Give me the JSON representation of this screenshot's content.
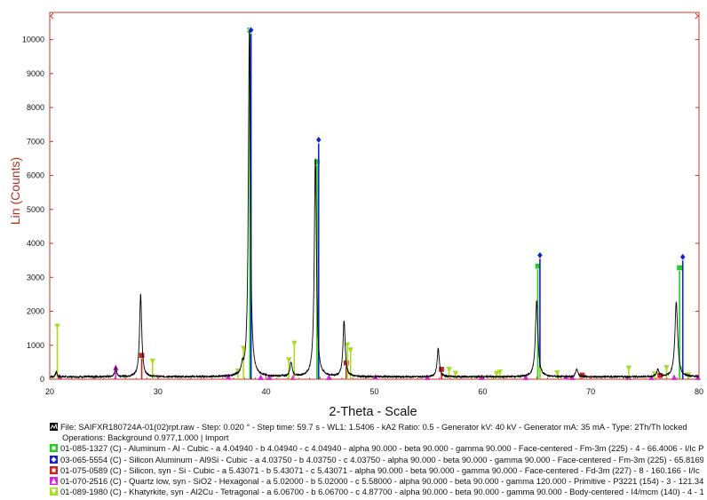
{
  "chart_data": {
    "type": "line",
    "title": "",
    "xlabel": "2-Theta - Scale",
    "ylabel": "Lin (Counts)",
    "xlim": [
      20,
      80
    ],
    "ylim": [
      0,
      10800
    ],
    "xticks": [
      20,
      30,
      40,
      50,
      60,
      70,
      80
    ],
    "yticks": [
      0,
      1000,
      2000,
      3000,
      4000,
      5000,
      6000,
      7000,
      8000,
      9000,
      10000
    ],
    "grid": false,
    "colors": {
      "frame": "#c0392b",
      "pattern": "#000000",
      "aluminum": "#22cc22",
      "silicon_aluminum": "#1122cc",
      "silicon": "#cc2222",
      "quartz": "#dd22dd",
      "khatyrkite": "#aadd22"
    },
    "series": [
      {
        "name": "File: SAIFXR180724A-01(02)rpt.raw",
        "kind": "pattern",
        "background": 70,
        "peaks": [
          {
            "x": 20.6,
            "y": 150,
            "w": 0.08
          },
          {
            "x": 26.1,
            "y": 280,
            "w": 0.1
          },
          {
            "x": 28.4,
            "y": 2420,
            "w": 0.12
          },
          {
            "x": 37.8,
            "y": 250,
            "w": 0.1
          },
          {
            "x": 38.45,
            "y": 10250,
            "w": 0.11
          },
          {
            "x": 42.3,
            "y": 420,
            "w": 0.12
          },
          {
            "x": 44.55,
            "y": 6450,
            "w": 0.12
          },
          {
            "x": 47.2,
            "y": 1650,
            "w": 0.12
          },
          {
            "x": 55.9,
            "y": 830,
            "w": 0.12
          },
          {
            "x": 65.0,
            "y": 2250,
            "w": 0.14
          },
          {
            "x": 68.7,
            "y": 230,
            "w": 0.12
          },
          {
            "x": 76.2,
            "y": 220,
            "w": 0.12
          },
          {
            "x": 77.9,
            "y": 2200,
            "w": 0.15
          }
        ]
      },
      {
        "name": "01-085-1327 (C) - Aluminum - Al - Cubic",
        "kind": "sticks",
        "color": "#22cc22",
        "marker": "square",
        "sticks": [
          [
            38.5,
            10280
          ],
          [
            44.7,
            6400
          ],
          [
            65.1,
            3330
          ],
          [
            78.2,
            3280
          ]
        ]
      },
      {
        "name": "03-065-5554 (C) - Silicon Aluminum - Al9Si - Cubic",
        "kind": "sticks",
        "color": "#1122cc",
        "marker": "diamond",
        "sticks": [
          [
            38.6,
            10280
          ],
          [
            44.85,
            7050
          ],
          [
            65.3,
            3650
          ],
          [
            78.5,
            3600
          ]
        ]
      },
      {
        "name": "01-075-0589 (C) - Silicon, syn - Si - Cubic",
        "kind": "sticks",
        "color": "#cc2222",
        "marker": "square",
        "sticks": [
          [
            28.5,
            700
          ],
          [
            47.4,
            480
          ],
          [
            56.2,
            290
          ],
          [
            69.2,
            120
          ],
          [
            76.4,
            110
          ]
        ]
      },
      {
        "name": "01-070-2516 (C) - Quartz low, syn - SiO2 - Hexagonal",
        "kind": "sticks",
        "color": "#dd22dd",
        "marker": "triangle-up",
        "sticks": [
          [
            26.1,
            350
          ],
          [
            20.9,
            80
          ],
          [
            36.5,
            80
          ],
          [
            39.5,
            60
          ],
          [
            40.3,
            60
          ],
          [
            42.5,
            60
          ],
          [
            45.8,
            60
          ],
          [
            50.1,
            70
          ],
          [
            54.9,
            60
          ],
          [
            59.9,
            60
          ],
          [
            64.0,
            60
          ],
          [
            67.7,
            70
          ],
          [
            68.3,
            60
          ],
          [
            73.5,
            60
          ],
          [
            75.6,
            60
          ],
          [
            77.7,
            60
          ],
          [
            79.9,
            60
          ]
        ]
      },
      {
        "name": "01-089-1980 (C) - Khatyrkite, syn - Al2Cu - Tetragonal",
        "kind": "sticks",
        "color": "#aadd22",
        "marker": "triangle-down",
        "sticks": [
          [
            20.7,
            1550
          ],
          [
            29.5,
            520
          ],
          [
            37.4,
            230
          ],
          [
            37.9,
            900
          ],
          [
            42.1,
            560
          ],
          [
            42.6,
            1050
          ],
          [
            47.5,
            1000
          ],
          [
            47.8,
            850
          ],
          [
            56.9,
            280
          ],
          [
            57.5,
            160
          ],
          [
            61.3,
            160
          ],
          [
            61.6,
            200
          ],
          [
            65.3,
            260
          ],
          [
            66.9,
            180
          ],
          [
            73.5,
            320
          ],
          [
            75.9,
            150
          ],
          [
            77.0,
            330
          ],
          [
            79.0,
            120
          ]
        ]
      }
    ]
  },
  "legend": {
    "file_line": "File: SAIFXR180724A-01(02)rpt.raw - Step: 0.020 ° - Step time: 59.7 s - WL1: 1.5406 - kA2 Ratio: 0.5 - Generator kV: 40 kV - Generator mA: 35 mA - Type: 2Th/Th locked",
    "operations_line": "Operations: Background 0.977,1.000 | Import",
    "entries": [
      {
        "icon": "square",
        "color": "#22cc22",
        "text": "01-085-1327 (C) - Aluminum - Al - Cubic - a 4.04940 - b 4.04940 - c 4.04940 - alpha 90.000 - beta 90.000 - gamma 90.000 - Face-centered - Fm-3m (225) - 4 - 66.4006 - I/Ic P"
      },
      {
        "icon": "diamond",
        "color": "#1122cc",
        "text": "03-065-5554 (C) - Silicon Aluminum - Al9Si - Cubic - a 4.03750 - b 4.03750 - c 4.03750 - alpha 90.000 - beta 90.000 - gamma 90.000 - Face-centered - Fm-3m (225) - 65.8169"
      },
      {
        "icon": "square",
        "color": "#cc2222",
        "text": "01-075-0589 (C) - Silicon, syn - Si - Cubic - a 5.43071 - b 5.43071 - c 5.43071 - alpha 90.000 - beta 90.000 - gamma 90.000 - Face-centered - Fd-3m (227) - 8 - 160.166 - I/Ic"
      },
      {
        "icon": "triangle-up",
        "color": "#dd22dd",
        "text": "01-070-2516 (C) - Quartz low, syn - SiO2 - Hexagonal - a 5.02000 - b 5.02000 - c 5.58000 - alpha 90.000 - beta 90.000 - gamma 120.000 - Primitive - P3221 (154) - 3 - 121.34"
      },
      {
        "icon": "triangle-down",
        "color": "#aadd22",
        "text": "01-089-1980 (C) - Khatyrkite, syn - Al2Cu - Tetragonal - a 6.06700 - b 6.06700 - c 4.87700 - alpha 90.000 - beta 90.000 - gamma 90.000 - Body-centered - I4/mcm (140) - 4 - 1"
      }
    ]
  }
}
